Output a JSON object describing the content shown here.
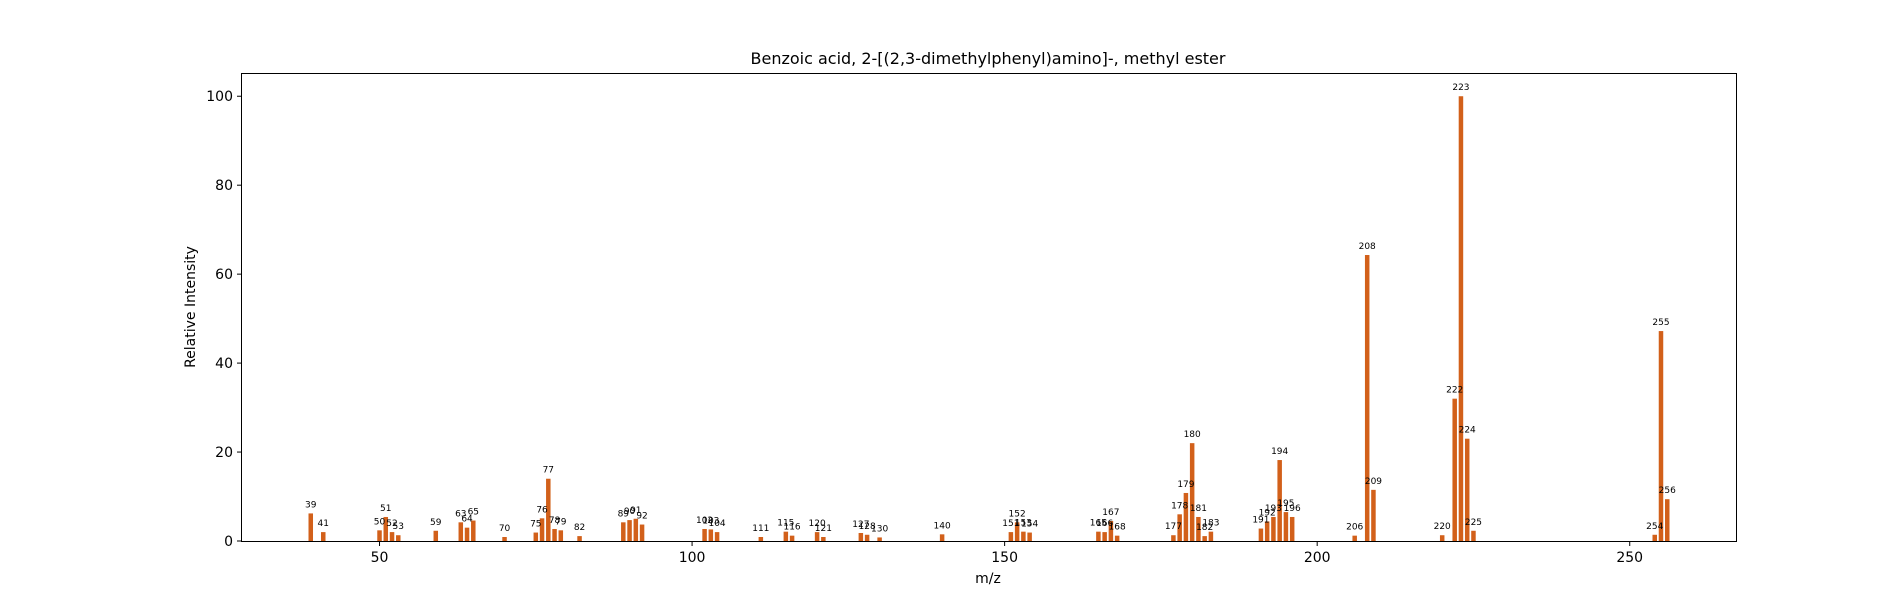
{
  "chart_data": {
    "type": "bar",
    "title": "Benzoic acid, 2-[(2,3-dimethylphenyl)amino]-, methyl ester",
    "xlabel": "m/z",
    "ylabel": "Relative Intensity",
    "xlim": [
      28,
      267
    ],
    "ylim": [
      0,
      105
    ],
    "xticks": [
      50,
      100,
      150,
      200,
      250
    ],
    "yticks": [
      0,
      20,
      40,
      60,
      80,
      100
    ],
    "grid": false,
    "bar_color": "#d2601a",
    "points": [
      {
        "x": 39,
        "y": 6.2
      },
      {
        "x": 41,
        "y": 2.0
      },
      {
        "x": 50,
        "y": 2.4
      },
      {
        "x": 51,
        "y": 5.4
      },
      {
        "x": 52,
        "y": 2.0
      },
      {
        "x": 53,
        "y": 1.3
      },
      {
        "x": 59,
        "y": 2.3
      },
      {
        "x": 63,
        "y": 4.2
      },
      {
        "x": 64,
        "y": 3.0
      },
      {
        "x": 65,
        "y": 4.6
      },
      {
        "x": 70,
        "y": 0.9
      },
      {
        "x": 75,
        "y": 1.9
      },
      {
        "x": 76,
        "y": 5.1
      },
      {
        "x": 77,
        "y": 14.0
      },
      {
        "x": 78,
        "y": 2.7
      },
      {
        "x": 79,
        "y": 2.4
      },
      {
        "x": 82,
        "y": 1.1
      },
      {
        "x": 89,
        "y": 4.2
      },
      {
        "x": 90,
        "y": 4.7
      },
      {
        "x": 91,
        "y": 5.0
      },
      {
        "x": 92,
        "y": 3.7
      },
      {
        "x": 102,
        "y": 2.7
      },
      {
        "x": 103,
        "y": 2.6
      },
      {
        "x": 104,
        "y": 2.0
      },
      {
        "x": 111,
        "y": 0.9
      },
      {
        "x": 115,
        "y": 2.1
      },
      {
        "x": 116,
        "y": 1.2
      },
      {
        "x": 120,
        "y": 2.0
      },
      {
        "x": 121,
        "y": 0.9
      },
      {
        "x": 127,
        "y": 1.8
      },
      {
        "x": 128,
        "y": 1.4
      },
      {
        "x": 130,
        "y": 0.8
      },
      {
        "x": 140,
        "y": 1.5
      },
      {
        "x": 151,
        "y": 2.0
      },
      {
        "x": 152,
        "y": 4.2
      },
      {
        "x": 153,
        "y": 2.1
      },
      {
        "x": 154,
        "y": 1.9
      },
      {
        "x": 165,
        "y": 2.1
      },
      {
        "x": 166,
        "y": 2.0
      },
      {
        "x": 167,
        "y": 4.5
      },
      {
        "x": 168,
        "y": 1.2
      },
      {
        "x": 177,
        "y": 1.3
      },
      {
        "x": 178,
        "y": 6.0
      },
      {
        "x": 179,
        "y": 10.8
      },
      {
        "x": 180,
        "y": 22.0
      },
      {
        "x": 181,
        "y": 5.4
      },
      {
        "x": 182,
        "y": 1.1
      },
      {
        "x": 183,
        "y": 2.1
      },
      {
        "x": 191,
        "y": 2.8
      },
      {
        "x": 192,
        "y": 4.4
      },
      {
        "x": 193,
        "y": 5.4
      },
      {
        "x": 194,
        "y": 18.2
      },
      {
        "x": 195,
        "y": 6.5
      },
      {
        "x": 196,
        "y": 5.4
      },
      {
        "x": 206,
        "y": 1.2
      },
      {
        "x": 208,
        "y": 64.3
      },
      {
        "x": 209,
        "y": 11.5
      },
      {
        "x": 220,
        "y": 1.3
      },
      {
        "x": 222,
        "y": 32.0
      },
      {
        "x": 223,
        "y": 100.0
      },
      {
        "x": 224,
        "y": 23.0
      },
      {
        "x": 225,
        "y": 2.3
      },
      {
        "x": 254,
        "y": 1.4
      },
      {
        "x": 255,
        "y": 47.2
      },
      {
        "x": 256,
        "y": 9.4
      }
    ]
  }
}
